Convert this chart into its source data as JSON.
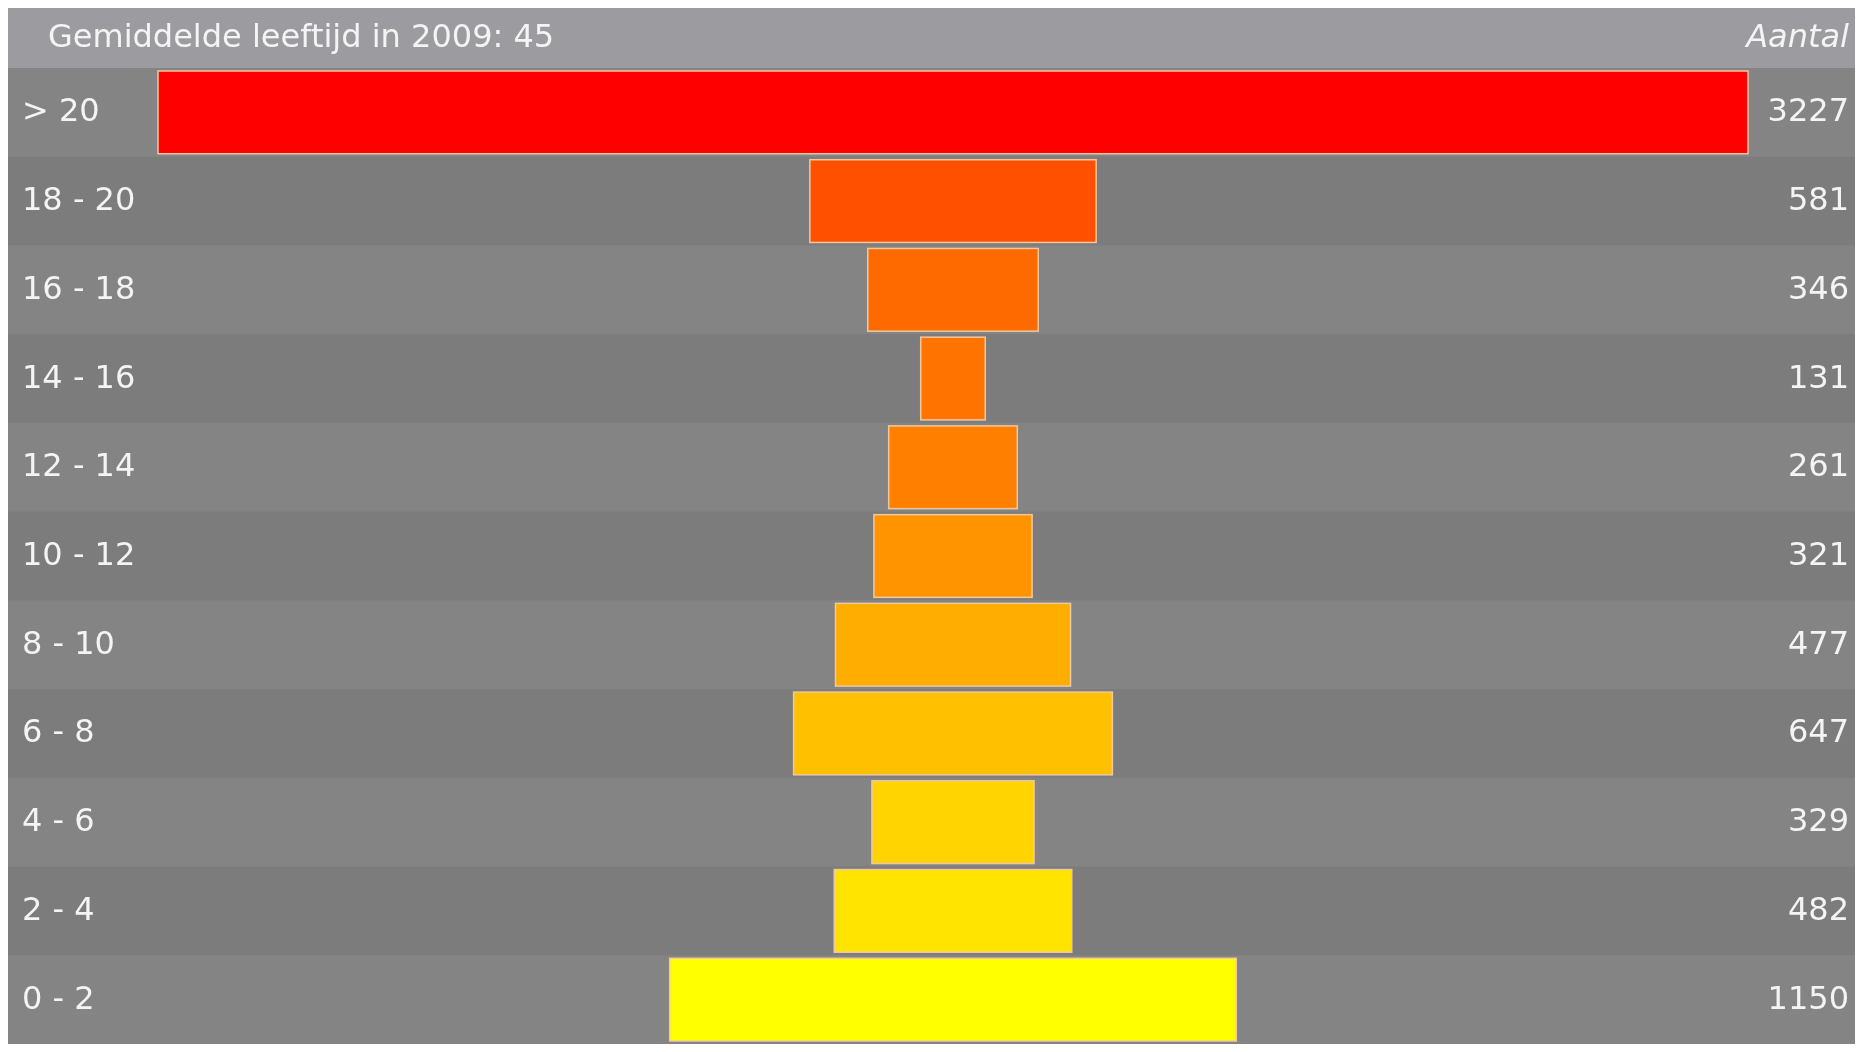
{
  "chart_data": {
    "type": "other",
    "title": "Gemiddelde leeftijd in 2009: 45",
    "xlabel": "Aantal",
    "data_labels": true,
    "categories": [
      "> 20",
      "18 - 20",
      "16 - 18",
      "14 - 16",
      "12 - 14",
      "10 - 12",
      "8 - 10",
      "6 - 8",
      "4 - 6",
      "2 - 4",
      "0 - 2"
    ],
    "values": [
      3227,
      581,
      346,
      131,
      261,
      321,
      477,
      647,
      329,
      482,
      1150
    ],
    "colors": [
      "#ff0000",
      "#ff5000",
      "#ff6a00",
      "#ff7400",
      "#ff8000",
      "#ff9400",
      "#ffae00",
      "#ffc000",
      "#ffd400",
      "#ffe400",
      "#ffff00"
    ]
  }
}
